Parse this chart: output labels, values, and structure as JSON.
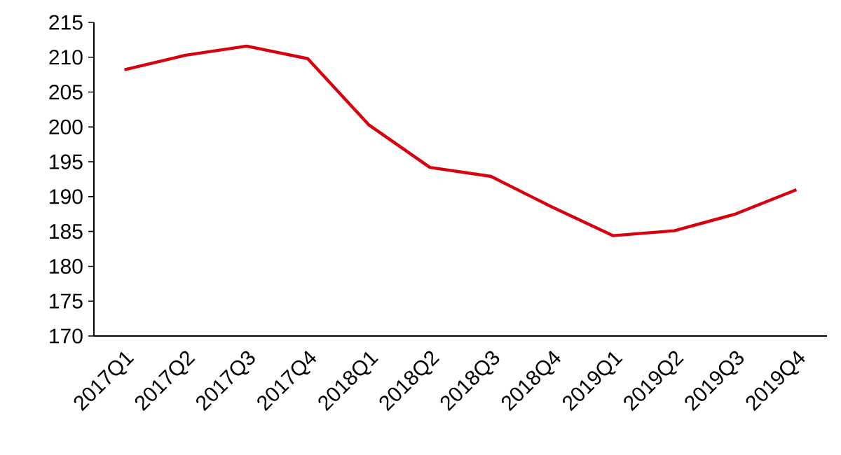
{
  "chart_data": {
    "type": "line",
    "categories": [
      "2017Q1",
      "2017Q2",
      "2017Q3",
      "2017Q4",
      "2018Q1",
      "2018Q2",
      "2018Q3",
      "2018Q4",
      "2019Q1",
      "2019Q2",
      "2019Q3",
      "2019Q4"
    ],
    "series": [
      {
        "color": "#d7000f",
        "values": [
          208.2,
          210.3,
          211.6,
          209.8,
          200.3,
          194.2,
          192.9,
          188.5,
          184.4,
          185.1,
          187.5,
          191.0
        ]
      }
    ],
    "ylim": [
      170,
      215
    ],
    "yticks": [
      170,
      175,
      180,
      185,
      190,
      195,
      200,
      205,
      210,
      215
    ],
    "grid": false,
    "marker": "none",
    "line_style": "solid"
  }
}
